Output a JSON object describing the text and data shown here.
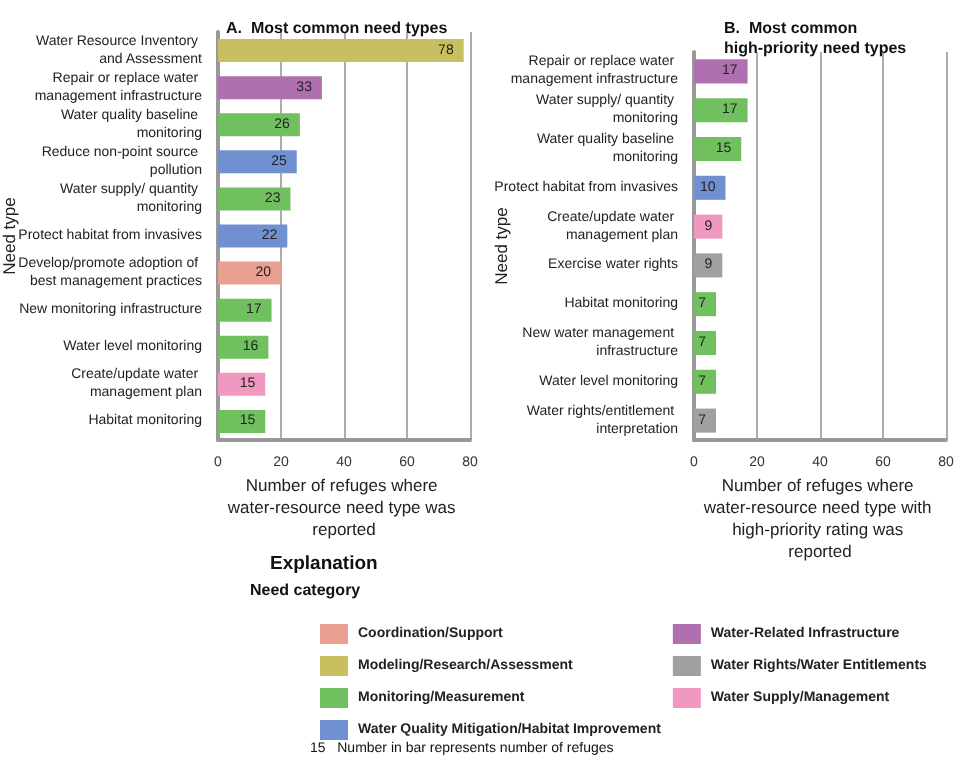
{
  "chart_data": [
    {
      "type": "bar",
      "orientation": "horizontal",
      "stacked": true,
      "title": "A.  Most common need types",
      "xlabel": "Number of refuges where water-resource need type was reported",
      "ylabel": "Need type",
      "legend": "bottom",
      "legend_title": "Need category",
      "annotations": [
        "Explanation",
        "15   Number in bar represents number of refuges"
      ],
      "data_labels": true,
      "grid": "x",
      "xlim": [
        0,
        80
      ],
      "xticks": [
        0,
        20,
        40,
        60,
        80
      ],
      "categories": [
        "Water Resource Inventory and Assessment",
        "Repair or replace water management infrastructure",
        "Water quality baseline monitoring",
        "Reduce non-point source pollution",
        "Water supply/ quantity monitoring",
        "Protect habitat from invasives",
        "Develop/promote adoption of best management practices",
        "New monitoring infrastructure",
        "Water level monitoring",
        "Create/update water management plan",
        "Habitat monitoring"
      ],
      "series": [
        {
          "name": "Coordination/Support",
          "color": "#e8a090",
          "values": [
            null,
            null,
            null,
            null,
            null,
            null,
            20,
            null,
            null,
            null,
            null
          ]
        },
        {
          "name": "Modeling/Research/Assessment",
          "color": "#c8c060",
          "values": [
            78,
            null,
            null,
            null,
            null,
            null,
            null,
            null,
            null,
            null,
            null
          ]
        },
        {
          "name": "Monitoring/Measurement",
          "color": "#70c060",
          "values": [
            null,
            null,
            26,
            null,
            23,
            null,
            null,
            17,
            16,
            null,
            15
          ]
        },
        {
          "name": "Water Quality Mitigation/Habitat Improvement",
          "color": "#7090d0",
          "values": [
            null,
            null,
            null,
            25,
            null,
            22,
            null,
            null,
            null,
            null,
            null
          ]
        },
        {
          "name": "Water-Related Infrastructure",
          "color": "#b070b0",
          "values": [
            null,
            33,
            null,
            null,
            null,
            null,
            null,
            null,
            null,
            null,
            null
          ]
        },
        {
          "name": "Water Rights/Water Entitlements",
          "color": "#a0a0a0",
          "values": [
            null,
            null,
            null,
            null,
            null,
            null,
            null,
            null,
            null,
            null,
            null
          ]
        },
        {
          "name": "Water Supply/Management",
          "color": "#f098c0",
          "values": [
            null,
            null,
            null,
            null,
            null,
            null,
            null,
            null,
            null,
            15,
            null
          ]
        }
      ]
    },
    {
      "type": "bar",
      "orientation": "horizontal",
      "stacked": true,
      "title": "B.  Most common high-priority need types",
      "xlabel": "Number of refuges where water-resource need type with high-priority rating was reported",
      "ylabel": "Need type",
      "data_labels": true,
      "grid": "x",
      "xlim": [
        0,
        80
      ],
      "xticks": [
        0,
        20,
        40,
        60,
        80
      ],
      "categories": [
        "Repair or replace water management infrastructure",
        "Water supply/ quantity monitoring",
        "Water quality baseline monitoring",
        "Protect habitat from invasives",
        "Create/update water management plan",
        "Exercise water rights",
        "Habitat monitoring",
        "New water management infrastructure",
        "Water level monitoring",
        "Water rights/entitlement interpretation"
      ],
      "series": [
        {
          "color": "#70c060",
          "values": [
            null,
            17,
            15,
            null,
            null,
            null,
            7,
            7,
            7,
            null
          ]
        },
        {
          "color": "#7090d0",
          "values": [
            null,
            null,
            null,
            10,
            null,
            null,
            null,
            null,
            null,
            null
          ]
        },
        {
          "color": "#b070b0",
          "values": [
            17,
            null,
            null,
            null,
            null,
            null,
            null,
            null,
            null,
            null
          ]
        },
        {
          "color": "#a0a0a0",
          "values": [
            null,
            null,
            null,
            null,
            null,
            9,
            null,
            null,
            null,
            7
          ]
        },
        {
          "color": "#f098c0",
          "values": [
            null,
            null,
            null,
            null,
            9,
            null,
            null,
            null,
            null,
            null
          ]
        }
      ]
    }
  ]
}
